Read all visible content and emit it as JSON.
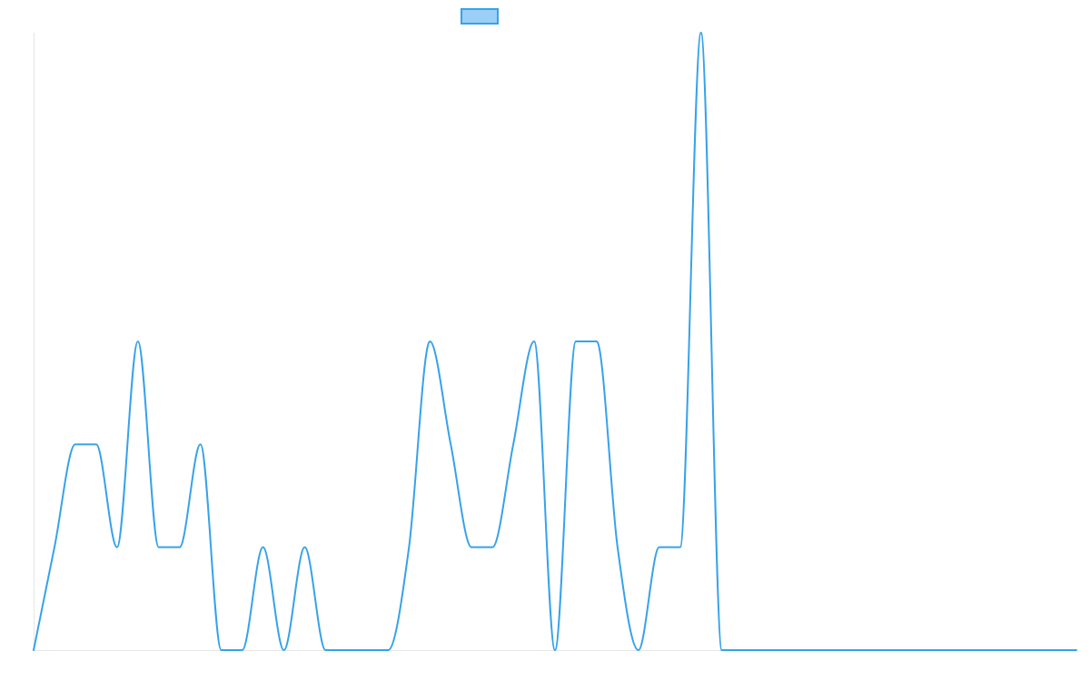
{
  "chart_data": {
    "type": "line",
    "title": "",
    "xlabel": "",
    "ylabel": "",
    "grid": false,
    "legend_placement": "top-center",
    "x": [
      0,
      1,
      2,
      3,
      4,
      5,
      6,
      7,
      8,
      9,
      10,
      11,
      12,
      13,
      14,
      15,
      16,
      17,
      18,
      19,
      20,
      21,
      22,
      23,
      24,
      25,
      26,
      27,
      28,
      29,
      30,
      31,
      32,
      33,
      34,
      35,
      36,
      37,
      38,
      39,
      40,
      41,
      42,
      43,
      44,
      45,
      46,
      47,
      48,
      49,
      50
    ],
    "xlim": [
      0,
      50
    ],
    "ylim": [
      0,
      6
    ],
    "series": [
      {
        "name": "",
        "color": "#36a2eb",
        "fill_color": "#9ad0f5",
        "values": [
          0,
          1,
          2,
          2,
          1,
          3,
          1,
          1,
          2,
          0,
          0,
          1,
          0,
          1,
          0,
          0,
          0,
          0,
          1,
          3,
          2,
          1,
          1,
          2,
          3,
          0,
          3,
          3,
          1,
          0,
          1,
          1,
          6,
          0,
          0,
          0,
          0,
          0,
          0,
          0,
          0,
          0,
          0,
          0,
          0,
          0,
          0,
          0,
          0,
          0,
          0
        ]
      }
    ]
  }
}
